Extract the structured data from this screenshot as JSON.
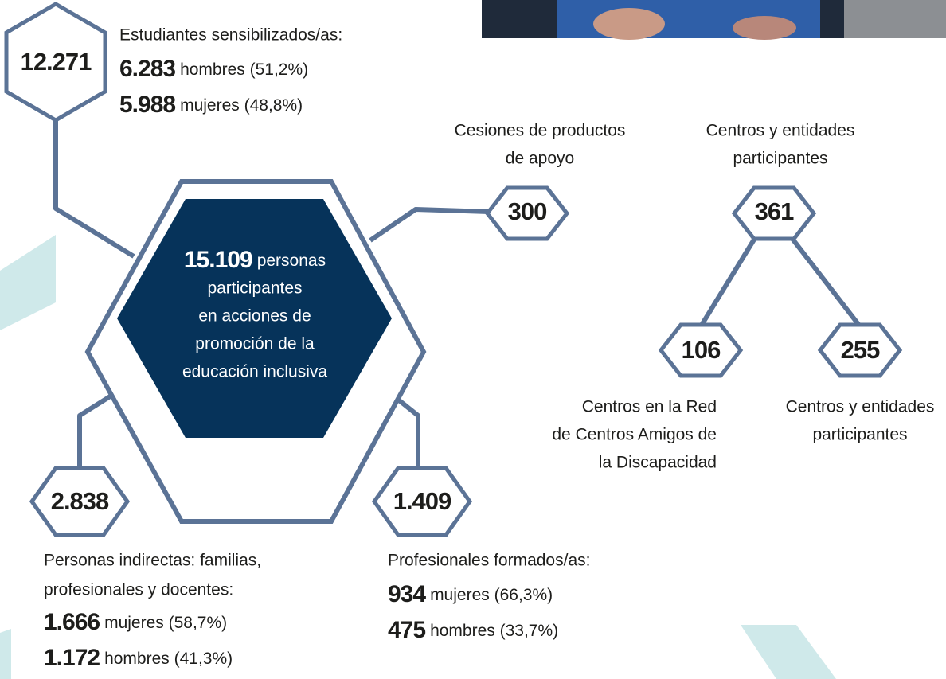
{
  "students": {
    "value": "12.271",
    "title": "Estudiantes sensibilizados/as:",
    "breakdown": [
      {
        "value": "6.283",
        "label": "hombres (51,2%)"
      },
      {
        "value": "5.988",
        "label": "mujeres (48,8%)"
      }
    ]
  },
  "center": {
    "value": "15.109",
    "lines": [
      "personas",
      "participantes",
      "en acciones de",
      "promoción de la",
      "educación inclusiva"
    ]
  },
  "loans": {
    "value": "300",
    "lines": [
      "Cesiones de productos",
      "de apoyo"
    ]
  },
  "centers": {
    "value": "361",
    "lines": [
      "Centros y entidades",
      "participantes"
    ],
    "children": [
      {
        "value": "106",
        "lines": [
          "Centros en la Red",
          "de Centros Amigos de",
          "la Discapacidad"
        ]
      },
      {
        "value": "255",
        "lines": [
          "Centros y entidades",
          "participantes"
        ]
      }
    ]
  },
  "indirect": {
    "value": "2.838",
    "lines": [
      "Personas indirectas: familias,",
      "profesionales y docentes:"
    ],
    "breakdown": [
      {
        "value": "1.666",
        "label": "mujeres (58,7%)"
      },
      {
        "value": "1.172",
        "label": "hombres (41,3%)"
      }
    ]
  },
  "professionals": {
    "value": "1.409",
    "title": "Profesionales formados/as:",
    "breakdown": [
      {
        "value": "934",
        "label": "mujeres (66,3%)"
      },
      {
        "value": "475",
        "label": "hombres (33,7%)"
      }
    ]
  }
}
